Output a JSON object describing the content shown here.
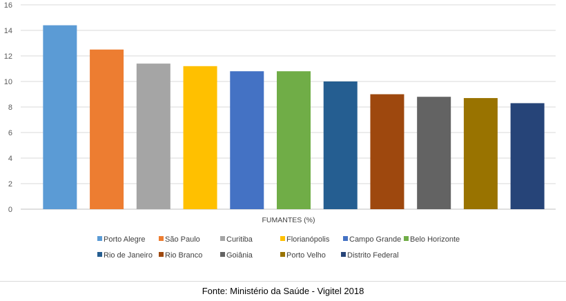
{
  "chart_data": {
    "type": "bar",
    "title": "",
    "xlabel": "FUMANTES (%)",
    "ylabel": "",
    "ylim": [
      0,
      16
    ],
    "yticks": [
      0,
      2,
      4,
      6,
      8,
      10,
      12,
      14,
      16
    ],
    "grid": true,
    "legend_position": "bottom",
    "categories": [
      "Porto Alegre",
      "São Paulo",
      "Curitiba",
      "Florianópolis",
      "Campo Grande",
      "Belo Horizonte",
      "Rio de Janeiro",
      "Rio Branco",
      "Goiânia",
      "Porto Velho",
      "Distrito Federal"
    ],
    "values": [
      14.4,
      12.5,
      11.4,
      11.2,
      10.8,
      10.8,
      10.0,
      9.0,
      8.8,
      8.7,
      8.3
    ],
    "colors": [
      "#5b9bd5",
      "#ed7d31",
      "#a5a5a5",
      "#ffc000",
      "#4472c4",
      "#70ad47",
      "#255e91",
      "#9e480e",
      "#636363",
      "#997300",
      "#264478"
    ]
  },
  "caption": "Fonte: Ministério da Saúde - Vigitel 2018"
}
